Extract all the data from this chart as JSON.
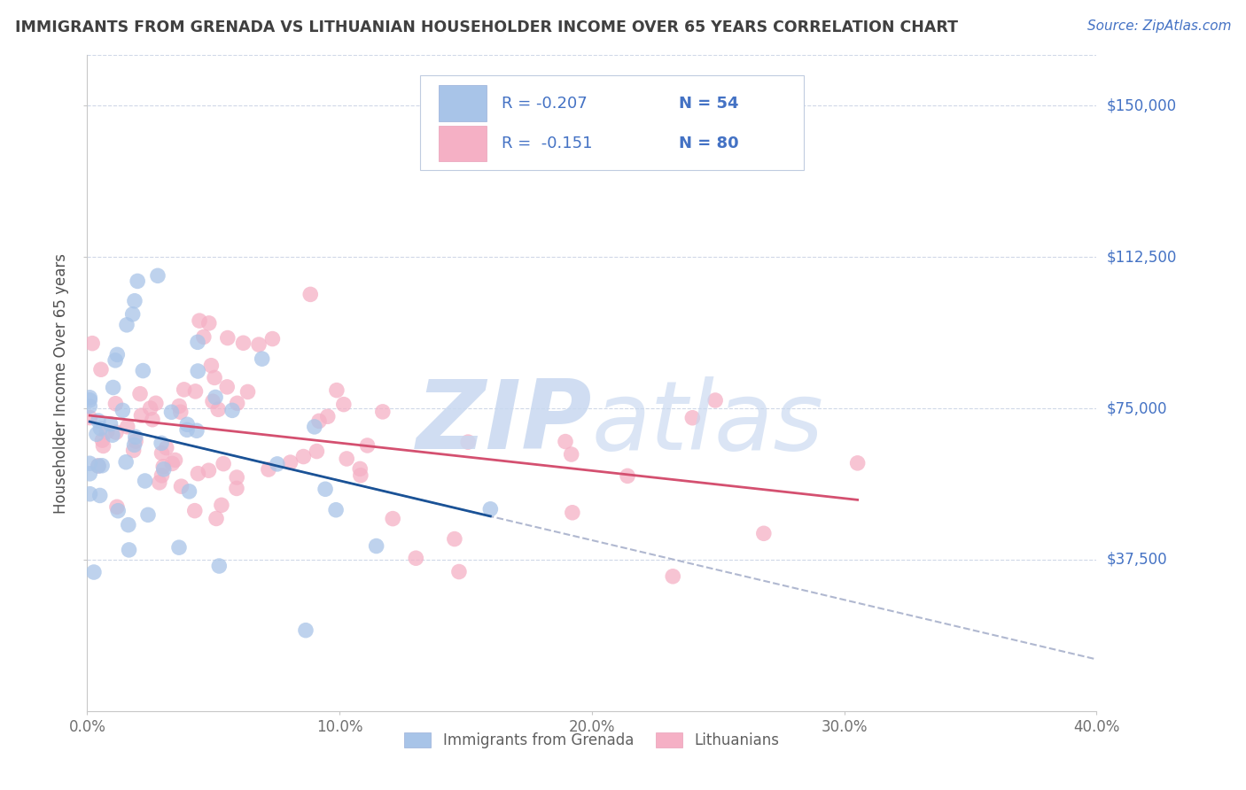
{
  "title": "IMMIGRANTS FROM GRENADA VS LITHUANIAN HOUSEHOLDER INCOME OVER 65 YEARS CORRELATION CHART",
  "source": "Source: ZipAtlas.com",
  "ylabel": "Householder Income Over 65 years",
  "xlim": [
    0.0,
    40.0
  ],
  "ylim": [
    0,
    162500
  ],
  "xtick_labels": [
    "0.0%",
    "10.0%",
    "20.0%",
    "30.0%",
    "40.0%"
  ],
  "xtick_values": [
    0.0,
    10.0,
    20.0,
    30.0,
    40.0
  ],
  "ytick_labels": [
    "$37,500",
    "$75,000",
    "$112,500",
    "$150,000"
  ],
  "ytick_values": [
    37500,
    75000,
    112500,
    150000
  ],
  "legend_blue_r": "R = -0.207",
  "legend_blue_n": "N = 54",
  "legend_pink_r": "R =  -0.151",
  "legend_pink_n": "N = 80",
  "blue_color": "#a8c4e8",
  "pink_color": "#f5b0c5",
  "trend_blue_color": "#1a5296",
  "trend_pink_color": "#d45070",
  "trend_gray_color": "#b0b8d0",
  "background_color": "#ffffff",
  "grid_color": "#d0d8e8",
  "watermark": "ZIPAtlas",
  "watermark_blue": "#c8d8f0",
  "title_color": "#404040",
  "axis_label_color": "#505050",
  "ytick_color": "#4472c4",
  "legend_text_color": "#4472c4",
  "bottom_legend_color": "#606060",
  "blue_r": -0.207,
  "blue_n": 54,
  "pink_r": -0.151,
  "pink_n": 80,
  "blue_x_scale": 3.0,
  "blue_y_mean": 68000,
  "blue_y_std": 18000,
  "pink_x_scale": 8.0,
  "pink_y_mean": 68000,
  "pink_y_std": 16000
}
